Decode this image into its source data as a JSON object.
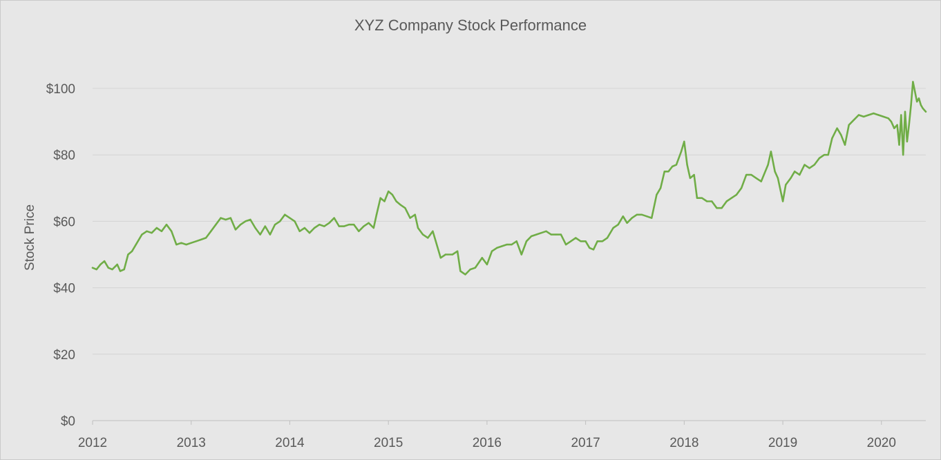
{
  "chart_data": {
    "type": "line",
    "title": "XYZ Company Stock Performance",
    "xlabel": "",
    "ylabel": "Stock Price",
    "x_ticks": [
      "2012",
      "2013",
      "2014",
      "2015",
      "2016",
      "2017",
      "2018",
      "2019",
      "2020"
    ],
    "y_ticks": [
      "$0",
      "$20",
      "$40",
      "$60",
      "$80",
      "$100"
    ],
    "xlim": [
      2012,
      2020.45
    ],
    "ylim": [
      0,
      100
    ],
    "grid": "horizontal",
    "legend": "none",
    "line_color": "#70ad47",
    "series": [
      {
        "points": [
          [
            2012.0,
            46
          ],
          [
            2012.04,
            45.5
          ],
          [
            2012.08,
            47
          ],
          [
            2012.12,
            48
          ],
          [
            2012.16,
            46
          ],
          [
            2012.2,
            45.5
          ],
          [
            2012.25,
            47
          ],
          [
            2012.28,
            45
          ],
          [
            2012.32,
            45.5
          ],
          [
            2012.36,
            50
          ],
          [
            2012.4,
            51
          ],
          [
            2012.44,
            53
          ],
          [
            2012.5,
            56
          ],
          [
            2012.55,
            57
          ],
          [
            2012.6,
            56.5
          ],
          [
            2012.65,
            58
          ],
          [
            2012.7,
            57
          ],
          [
            2012.75,
            59
          ],
          [
            2012.8,
            57
          ],
          [
            2012.85,
            53
          ],
          [
            2012.9,
            53.5
          ],
          [
            2012.95,
            53
          ],
          [
            2013.0,
            53.5
          ],
          [
            2013.05,
            54
          ],
          [
            2013.1,
            54.5
          ],
          [
            2013.15,
            55
          ],
          [
            2013.2,
            57
          ],
          [
            2013.25,
            59
          ],
          [
            2013.3,
            61
          ],
          [
            2013.35,
            60.5
          ],
          [
            2013.4,
            61
          ],
          [
            2013.45,
            57.5
          ],
          [
            2013.5,
            59
          ],
          [
            2013.55,
            60
          ],
          [
            2013.6,
            60.5
          ],
          [
            2013.65,
            58
          ],
          [
            2013.7,
            56
          ],
          [
            2013.75,
            58.5
          ],
          [
            2013.8,
            56
          ],
          [
            2013.85,
            59
          ],
          [
            2013.9,
            60
          ],
          [
            2013.95,
            62
          ],
          [
            2014.0,
            61
          ],
          [
            2014.05,
            60
          ],
          [
            2014.1,
            57
          ],
          [
            2014.15,
            58
          ],
          [
            2014.2,
            56.5
          ],
          [
            2014.25,
            58
          ],
          [
            2014.3,
            59
          ],
          [
            2014.35,
            58.5
          ],
          [
            2014.4,
            59.5
          ],
          [
            2014.45,
            61
          ],
          [
            2014.5,
            58.5
          ],
          [
            2014.55,
            58.5
          ],
          [
            2014.6,
            59
          ],
          [
            2014.65,
            59
          ],
          [
            2014.7,
            57
          ],
          [
            2014.75,
            58.5
          ],
          [
            2014.8,
            59.5
          ],
          [
            2014.85,
            58
          ],
          [
            2014.88,
            62
          ],
          [
            2014.92,
            67
          ],
          [
            2014.96,
            66
          ],
          [
            2015.0,
            69
          ],
          [
            2015.04,
            68
          ],
          [
            2015.08,
            66
          ],
          [
            2015.12,
            65
          ],
          [
            2015.17,
            64
          ],
          [
            2015.22,
            61
          ],
          [
            2015.27,
            62
          ],
          [
            2015.3,
            58
          ],
          [
            2015.35,
            56
          ],
          [
            2015.4,
            55
          ],
          [
            2015.45,
            57
          ],
          [
            2015.48,
            54
          ],
          [
            2015.53,
            49
          ],
          [
            2015.58,
            50
          ],
          [
            2015.65,
            50
          ],
          [
            2015.7,
            51
          ],
          [
            2015.73,
            45
          ],
          [
            2015.78,
            44
          ],
          [
            2015.83,
            45.5
          ],
          [
            2015.88,
            46
          ],
          [
            2015.95,
            49
          ],
          [
            2016.0,
            47
          ],
          [
            2016.05,
            51
          ],
          [
            2016.1,
            52
          ],
          [
            2016.15,
            52.5
          ],
          [
            2016.2,
            53
          ],
          [
            2016.25,
            53
          ],
          [
            2016.3,
            54
          ],
          [
            2016.35,
            50
          ],
          [
            2016.4,
            54
          ],
          [
            2016.45,
            55.5
          ],
          [
            2016.5,
            56
          ],
          [
            2016.55,
            56.5
          ],
          [
            2016.6,
            57
          ],
          [
            2016.65,
            56
          ],
          [
            2016.7,
            56
          ],
          [
            2016.75,
            56
          ],
          [
            2016.8,
            53
          ],
          [
            2016.85,
            54
          ],
          [
            2016.9,
            55
          ],
          [
            2016.95,
            54
          ],
          [
            2017.0,
            54
          ],
          [
            2017.04,
            52
          ],
          [
            2017.08,
            51.5
          ],
          [
            2017.12,
            54
          ],
          [
            2017.17,
            54
          ],
          [
            2017.22,
            55
          ],
          [
            2017.28,
            58
          ],
          [
            2017.33,
            59
          ],
          [
            2017.38,
            61.5
          ],
          [
            2017.42,
            59.5
          ],
          [
            2017.47,
            61
          ],
          [
            2017.52,
            62
          ],
          [
            2017.57,
            62
          ],
          [
            2017.62,
            61.5
          ],
          [
            2017.67,
            61
          ],
          [
            2017.72,
            68
          ],
          [
            2017.76,
            70
          ],
          [
            2017.8,
            75
          ],
          [
            2017.84,
            75
          ],
          [
            2017.88,
            76.5
          ],
          [
            2017.92,
            77
          ],
          [
            2017.97,
            81
          ],
          [
            2018.0,
            84
          ],
          [
            2018.03,
            77
          ],
          [
            2018.06,
            73
          ],
          [
            2018.1,
            74
          ],
          [
            2018.13,
            67
          ],
          [
            2018.18,
            67
          ],
          [
            2018.23,
            66
          ],
          [
            2018.28,
            66
          ],
          [
            2018.33,
            64
          ],
          [
            2018.38,
            64
          ],
          [
            2018.43,
            66
          ],
          [
            2018.48,
            67
          ],
          [
            2018.53,
            68
          ],
          [
            2018.58,
            70
          ],
          [
            2018.63,
            74
          ],
          [
            2018.68,
            74
          ],
          [
            2018.73,
            73
          ],
          [
            2018.78,
            72
          ],
          [
            2018.85,
            77
          ],
          [
            2018.88,
            81
          ],
          [
            2018.92,
            75
          ],
          [
            2018.95,
            73
          ],
          [
            2019.0,
            66
          ],
          [
            2019.03,
            71
          ],
          [
            2019.08,
            73
          ],
          [
            2019.12,
            75
          ],
          [
            2019.17,
            74
          ],
          [
            2019.22,
            77
          ],
          [
            2019.27,
            76
          ],
          [
            2019.32,
            77
          ],
          [
            2019.37,
            79
          ],
          [
            2019.42,
            80
          ],
          [
            2019.46,
            80
          ],
          [
            2019.5,
            85
          ],
          [
            2019.55,
            88
          ],
          [
            2019.59,
            86
          ],
          [
            2019.63,
            83
          ],
          [
            2019.67,
            89
          ],
          [
            2019.72,
            90.5
          ],
          [
            2019.77,
            92
          ],
          [
            2019.82,
            91.5
          ],
          [
            2019.87,
            92
          ],
          [
            2019.92,
            92.5
          ],
          [
            2019.97,
            92
          ],
          [
            2020.02,
            91.5
          ],
          [
            2020.07,
            91
          ],
          [
            2020.1,
            90
          ],
          [
            2020.13,
            88
          ],
          [
            2020.16,
            89
          ],
          [
            2020.18,
            83
          ],
          [
            2020.2,
            92
          ],
          [
            2020.22,
            80
          ],
          [
            2020.24,
            93
          ],
          [
            2020.26,
            84
          ],
          [
            2020.28,
            89
          ],
          [
            2020.3,
            95
          ],
          [
            2020.32,
            102
          ],
          [
            2020.34,
            99
          ],
          [
            2020.36,
            96
          ],
          [
            2020.38,
            97
          ],
          [
            2020.4,
            95
          ],
          [
            2020.42,
            94
          ],
          [
            2020.45,
            93
          ]
        ]
      }
    ]
  }
}
